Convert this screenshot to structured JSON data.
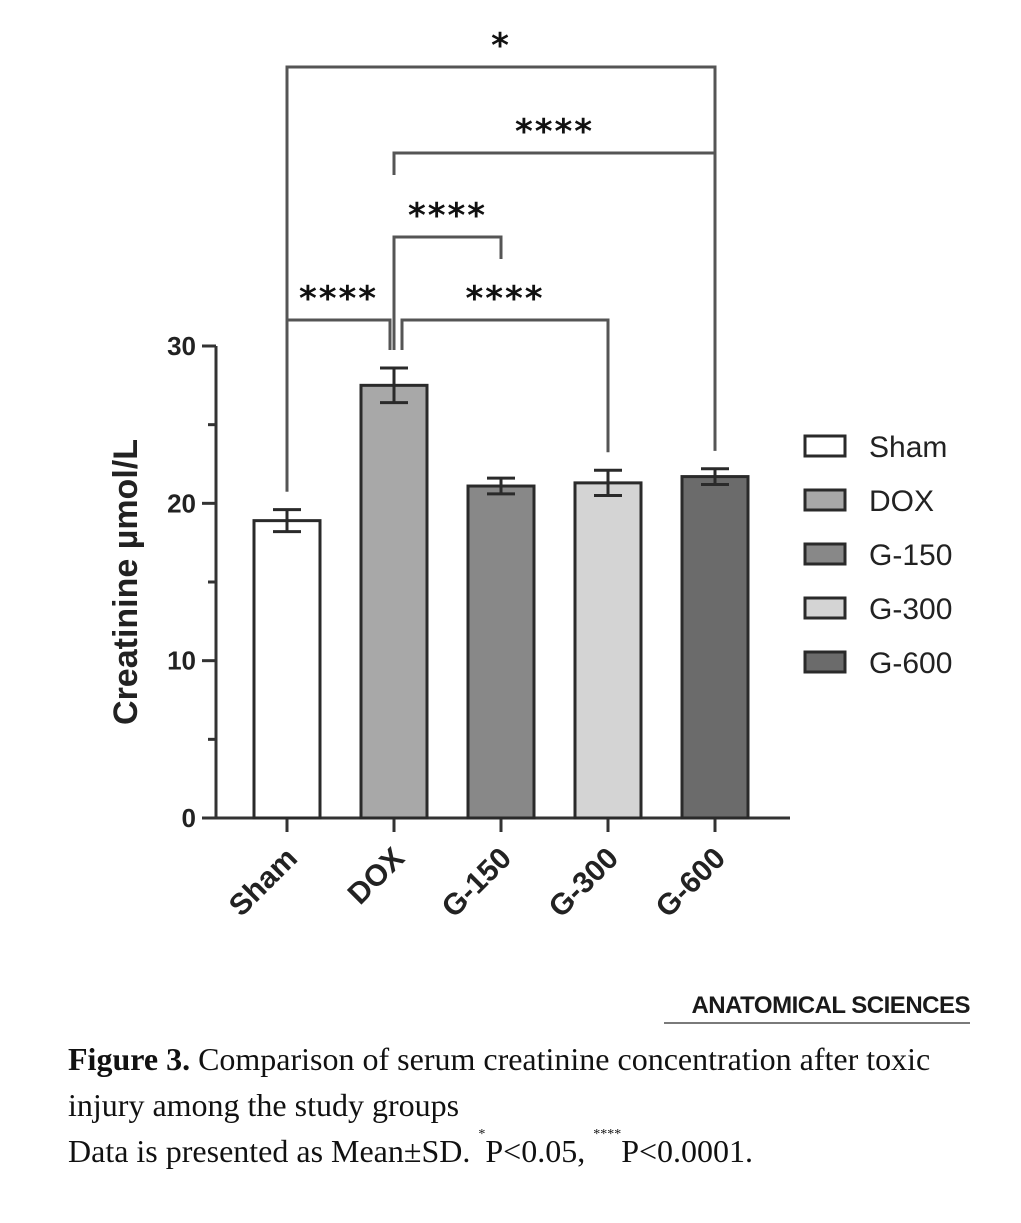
{
  "chart_data": {
    "type": "bar",
    "ylabel": "Creatinine µmol/L",
    "ylim": [
      0,
      30
    ],
    "yticks": [
      0,
      10,
      20,
      30
    ],
    "categories": [
      "Sham",
      "DOX",
      "G-150",
      "G-300",
      "G-600"
    ],
    "series": [
      {
        "values": [
          18.9,
          27.5,
          21.1,
          21.3,
          21.7
        ],
        "errors": [
          0.7,
          1.1,
          0.5,
          0.8,
          0.5
        ]
      }
    ],
    "bar_colors": [
      "#ffffff",
      "#a8a8a8",
      "#888888",
      "#d4d4d4",
      "#6b6b6b"
    ],
    "legend": {
      "position": "right",
      "entries": [
        "Sham",
        "DOX",
        "G-150",
        "G-300",
        "G-600"
      ]
    },
    "significance": [
      {
        "from": "Sham",
        "to": "DOX",
        "label": "****"
      },
      {
        "from": "DOX",
        "to": "G-300",
        "label": "****"
      },
      {
        "from": "DOX",
        "to": "G-150",
        "label": "****"
      },
      {
        "from": "DOX",
        "to": "G-600",
        "label": "****"
      },
      {
        "from": "Sham",
        "to": "G-600",
        "label": "*"
      }
    ]
  },
  "journal": "ANATOMICAL SCIENCES",
  "caption": {
    "figure_label": "Figure 3.",
    "text": " Comparison of serum creatinine concentration after toxic injury among the study groups",
    "line2_prefix": "Data is presented as Mean±SD. ",
    "star1": "*",
    "p1": "P<0.05, ",
    "star4": "****",
    "p4": "P<0.0001."
  }
}
